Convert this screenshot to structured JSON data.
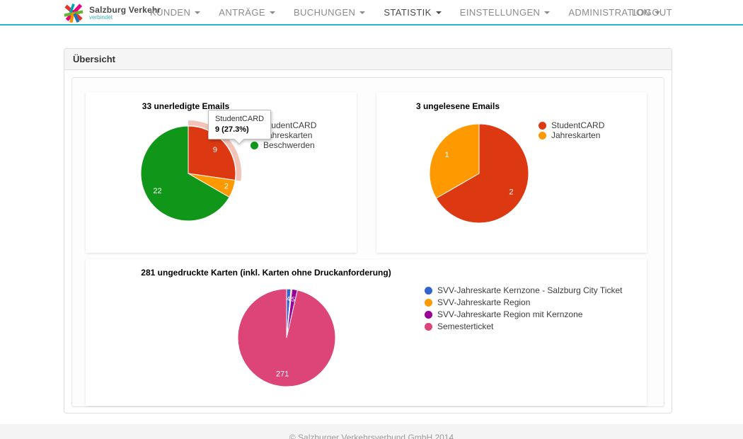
{
  "navbar": {
    "brand": {
      "title": "Salzburg Verkehr",
      "subtitle": "verbindet"
    },
    "items": [
      {
        "label": "KUNDEN"
      },
      {
        "label": "ANTRÄGE"
      },
      {
        "label": "BUCHUNGEN"
      },
      {
        "label": "STATISTIK",
        "active": true
      },
      {
        "label": "EINSTELLUNGEN"
      },
      {
        "label": "ADMINISTRATION"
      }
    ],
    "logout_label": "LOGOUT",
    "accent_color": "#2bb5c9"
  },
  "panel": {
    "title": "Übersicht"
  },
  "tooltip": {
    "line1": "StudentCARD",
    "line2": "9 (27.3%)"
  },
  "footer": {
    "copyright": "© Salzburger Verkehrsverbund GmbH 2014"
  },
  "chart_data": [
    {
      "type": "pie",
      "title": "33 unerledigte Emails",
      "categories": [
        "StudentCARD",
        "Jahreskarten",
        "Beschwerden"
      ],
      "values": [
        9,
        2,
        22
      ],
      "colors": [
        "#dc3912",
        "#ff9900",
        "#109618"
      ],
      "legend_position": "right",
      "selected_slice": 0,
      "selected_tooltip": "StudentCARD 9 (27.3%)"
    },
    {
      "type": "pie",
      "title": "3 ungelesene Emails",
      "categories": [
        "StudentCARD",
        "Jahreskarten"
      ],
      "values": [
        2,
        1
      ],
      "colors": [
        "#dc3912",
        "#ff9900"
      ],
      "legend_position": "right"
    },
    {
      "type": "pie",
      "title": "281 ungedruckte Karten (inkl. Karten ohne Druckanforderung)",
      "categories": [
        "SVV-Jahreskarte Kernzone - Salzburg City Ticket",
        "SVV-Jahreskarte Region",
        "SVV-Jahreskarte Region mit Kernzone",
        "Semesterticket"
      ],
      "values": [
        4,
        1,
        5,
        271
      ],
      "colors": [
        "#3366cc",
        "#ff9900",
        "#990099",
        "#dd4477"
      ],
      "legend_position": "right"
    }
  ]
}
